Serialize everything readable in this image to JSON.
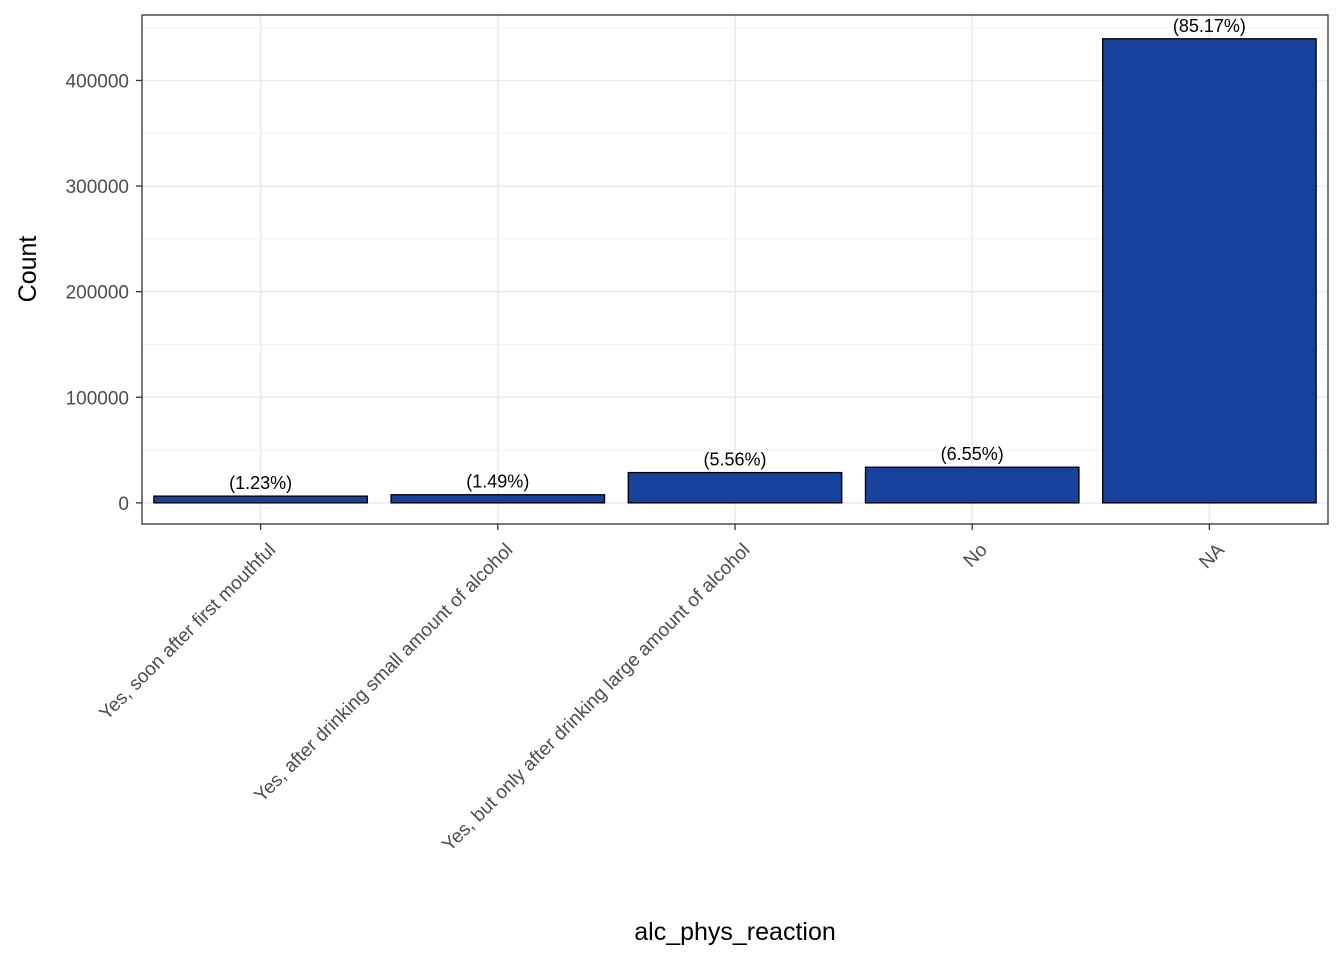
{
  "chart_data": {
    "type": "bar",
    "title": "",
    "xlabel": "alc_phys_reaction",
    "ylabel": "Count",
    "categories": [
      "Yes, soon after first mouthful",
      "Yes, after drinking small amount of alcohol",
      "Yes, but only after drinking large amount of alcohol",
      "No",
      "NA"
    ],
    "values": [
      6400,
      7700,
      28700,
      33800,
      439500
    ],
    "labels": [
      "(1.23%)",
      "(1.49%)",
      "(5.56%)",
      "(6.55%)",
      "(85.17%)"
    ],
    "ylim": [
      -20000,
      462000
    ],
    "yticks": [
      0,
      100000,
      200000,
      300000,
      400000
    ],
    "grid": true,
    "legend": "none",
    "bar_fill": "#17419a",
    "bar_stroke": "#000000"
  }
}
